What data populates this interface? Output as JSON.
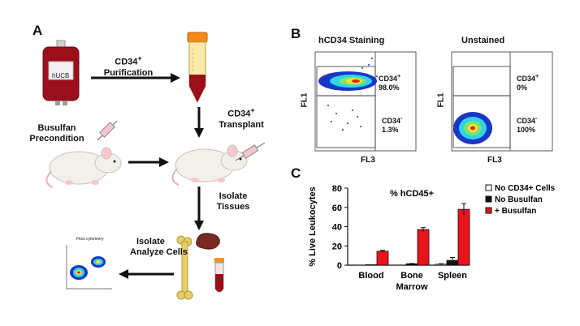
{
  "panel_a": {
    "letter": "A",
    "bag_label": "hUCB",
    "step_purification": [
      "CD34",
      "+",
      "Purification"
    ],
    "step_transplant": [
      "CD34",
      "+",
      "Transplant"
    ],
    "step_precondition": [
      "Busulfan",
      "Precondition"
    ],
    "step_isolate_tissues": [
      "Isolate",
      "Tissues"
    ],
    "step_analyze": [
      "Isolate",
      "Analyze Cells"
    ],
    "mini_plot_title": "Flow cytometry"
  },
  "panel_b": {
    "letter": "B",
    "plots": [
      {
        "title": "hCD34 Staining",
        "gate_upper": [
          "CD34",
          "+",
          "98.0%"
        ],
        "gate_lower": [
          "CD34",
          "-",
          "1.3%"
        ],
        "xlabel": "FL3",
        "ylabel": "FL1"
      },
      {
        "title": "Unstained",
        "gate_upper": [
          "CD34",
          "+",
          "0%"
        ],
        "gate_lower": [
          "CD34",
          "-",
          "100%"
        ],
        "xlabel": "FL3",
        "ylabel": "FL1"
      }
    ]
  },
  "panel_c": {
    "letter": "C"
  },
  "chart_data": {
    "type": "bar",
    "title": "% hCD45+",
    "ylabel": "% Live Leukocytes",
    "ylim": [
      0,
      80
    ],
    "yticks": [
      0,
      20,
      40,
      60,
      80
    ],
    "categories": [
      "Blood",
      "Bone\nMarrow",
      "Spleen"
    ],
    "category_lines": [
      [
        "Blood"
      ],
      [
        "Bone",
        "Marrow"
      ],
      [
        "Spleen"
      ]
    ],
    "series": [
      {
        "name": "No CD34+ Cells",
        "color": "#ffffff",
        "values": [
          0,
          0,
          1
        ],
        "errors": [
          0,
          0,
          0.5
        ]
      },
      {
        "name": "No Busulfan",
        "color": "#111111",
        "values": [
          0.5,
          1.5,
          5
        ],
        "errors": [
          0,
          0.3,
          3
        ]
      },
      {
        "name": "+ Busulfan",
        "color": "#e8141a",
        "values": [
          14.5,
          37,
          58
        ],
        "errors": [
          1,
          2,
          6
        ]
      }
    ],
    "legend_position": "top-right",
    "grid": false
  }
}
